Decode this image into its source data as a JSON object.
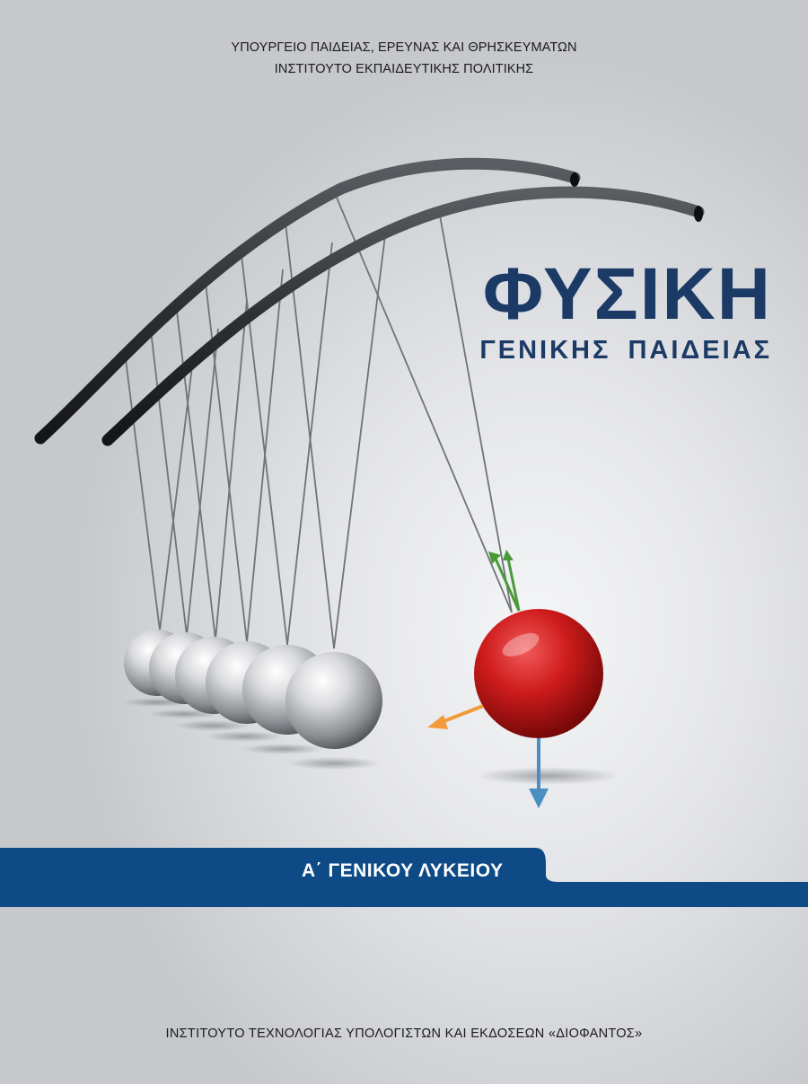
{
  "header": {
    "ministry": "ΥΠΟΥΡΓΕΙΟ ΠΑΙΔΕΙΑΣ, ΕΡΕΥΝΑΣ ΚΑΙ ΘΡΗΣΚΕΥΜΑΤΩΝ",
    "institute": "ΙΝΣΤΙΤΟΥΤΟ ΕΚΠΑΙΔΕΥΤΙΚΗΣ ΠΟΛΙΤΙΚΗΣ"
  },
  "cover": {
    "title": "ΦΥΣΙΚΗ",
    "subtitle": "ΓΕΝΙΚΗΣ ΠΑΙΔΕΙΑΣ",
    "grade": "Α΄ ΓΕΝΙΚΟΥ ΛΥΚΕΙΟΥ",
    "illustration_icon": "newtons-cradle-icon"
  },
  "footer": {
    "publisher": "ΙΝΣΤΙΤΟΥΤΟ ΤΕΧΝΟΛΟΓΙΑΣ ΥΠΟΛΟΓΙΣΤΩΝ ΚΑΙ ΕΚΔΟΣΕΩΝ «ΔΙΟΦΑΝΤΟΣ»"
  },
  "colors": {
    "title_blue": "#1c3a66",
    "band_blue": "#0d4a86",
    "red_ball": "#c41a1a",
    "arrow_green": "#4a9a3a",
    "arrow_orange": "#f29a3a",
    "arrow_blue": "#4a8fc2"
  }
}
